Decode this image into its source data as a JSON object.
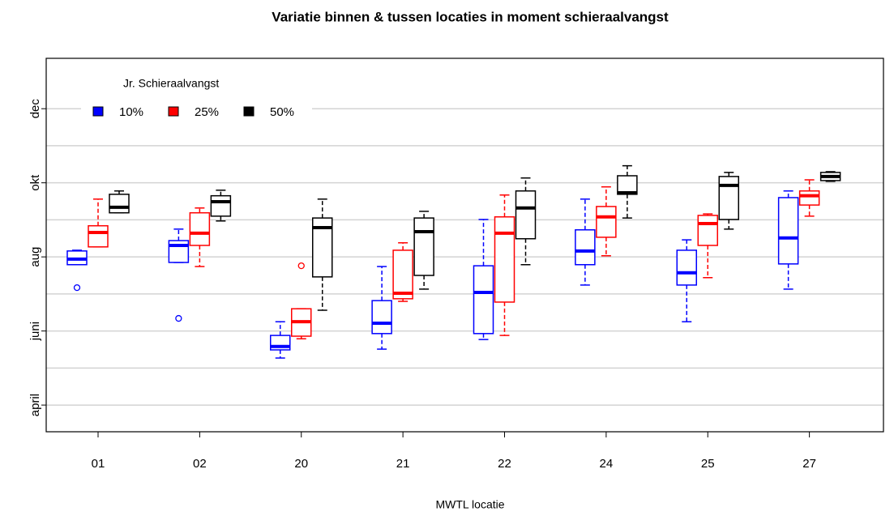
{
  "chart_data": {
    "type": "boxplot",
    "title": "Variatie binnen & tussen locaties in moment schieraalvangst",
    "xlabel": "MWTL locatie",
    "legend_title": "Jr. Schieraalvangst",
    "legend_position": "top-left",
    "categories": [
      "01",
      "02",
      "20",
      "21",
      "22",
      "24",
      "25",
      "27"
    ],
    "ylim": [
      3.28,
      13.36
    ],
    "yticks": [
      {
        "value": 4,
        "label": "april"
      },
      {
        "value": 6,
        "label": "juni"
      },
      {
        "value": 8,
        "label": "aug"
      },
      {
        "value": 10,
        "label": "okt"
      },
      {
        "value": 12,
        "label": "dec"
      }
    ],
    "ygrid": [
      4,
      5,
      6,
      7,
      8,
      9,
      10,
      11,
      12
    ],
    "series": [
      {
        "name": "10%",
        "color": "#0000ff",
        "boxes": [
          {
            "low": 7.79,
            "q1": 7.79,
            "median": 7.94,
            "q3": 8.16,
            "high": 8.18,
            "outliers": [
              7.17
            ]
          },
          {
            "low": 7.85,
            "q1": 7.85,
            "median": 8.31,
            "q3": 8.44,
            "high": 8.75,
            "outliers": [
              6.34
            ]
          },
          {
            "low": 5.27,
            "q1": 5.49,
            "median": 5.58,
            "q3": 5.88,
            "high": 6.25
          },
          {
            "low": 5.51,
            "q1": 5.93,
            "median": 6.21,
            "q3": 6.82,
            "high": 7.74
          },
          {
            "low": 5.77,
            "q1": 5.93,
            "median": 7.04,
            "q3": 7.76,
            "high": 9.01
          },
          {
            "low": 7.24,
            "q1": 7.79,
            "median": 8.16,
            "q3": 8.73,
            "high": 9.56
          },
          {
            "low": 6.25,
            "q1": 7.24,
            "median": 7.57,
            "q3": 8.18,
            "high": 8.46
          },
          {
            "low": 7.13,
            "q1": 7.81,
            "median": 8.51,
            "q3": 9.6,
            "high": 9.78
          }
        ]
      },
      {
        "name": "25%",
        "color": "#ff0000",
        "boxes": [
          {
            "low": 8.27,
            "q1": 8.27,
            "median": 8.66,
            "q3": 8.84,
            "high": 9.56
          },
          {
            "low": 7.74,
            "q1": 8.31,
            "median": 8.64,
            "q3": 9.19,
            "high": 9.32
          },
          {
            "low": 5.79,
            "q1": 5.86,
            "median": 6.25,
            "q3": 6.6,
            "high": 6.6,
            "outliers": [
              7.76
            ]
          },
          {
            "low": 6.8,
            "q1": 6.87,
            "median": 7.02,
            "q3": 8.18,
            "high": 8.38
          },
          {
            "low": 5.88,
            "q1": 6.78,
            "median": 8.64,
            "q3": 9.08,
            "high": 9.67
          },
          {
            "low": 8.03,
            "q1": 8.53,
            "median": 9.08,
            "q3": 9.36,
            "high": 9.89
          },
          {
            "low": 7.44,
            "q1": 8.31,
            "median": 8.9,
            "q3": 9.12,
            "high": 9.16
          },
          {
            "low": 9.1,
            "q1": 9.4,
            "median": 9.65,
            "q3": 9.78,
            "high": 10.08
          }
        ]
      },
      {
        "name": "50%",
        "color": "#000000",
        "boxes": [
          {
            "low": 9.19,
            "q1": 9.19,
            "median": 9.34,
            "q3": 9.69,
            "high": 9.78
          },
          {
            "low": 8.97,
            "q1": 9.1,
            "median": 9.49,
            "q3": 9.65,
            "high": 9.8
          },
          {
            "low": 6.56,
            "q1": 7.46,
            "median": 8.79,
            "q3": 9.05,
            "high": 9.56
          },
          {
            "low": 7.13,
            "q1": 7.5,
            "median": 8.68,
            "q3": 9.05,
            "high": 9.23
          },
          {
            "low": 7.79,
            "q1": 8.49,
            "median": 9.32,
            "q3": 9.78,
            "high": 10.13
          },
          {
            "low": 9.05,
            "q1": 9.69,
            "median": 9.73,
            "q3": 10.19,
            "high": 10.46
          },
          {
            "low": 8.75,
            "q1": 9.01,
            "median": 9.93,
            "q3": 10.17,
            "high": 10.28
          },
          {
            "low": 10.04,
            "q1": 10.06,
            "median": 10.17,
            "q3": 10.28,
            "high": 10.3
          }
        ]
      }
    ]
  }
}
